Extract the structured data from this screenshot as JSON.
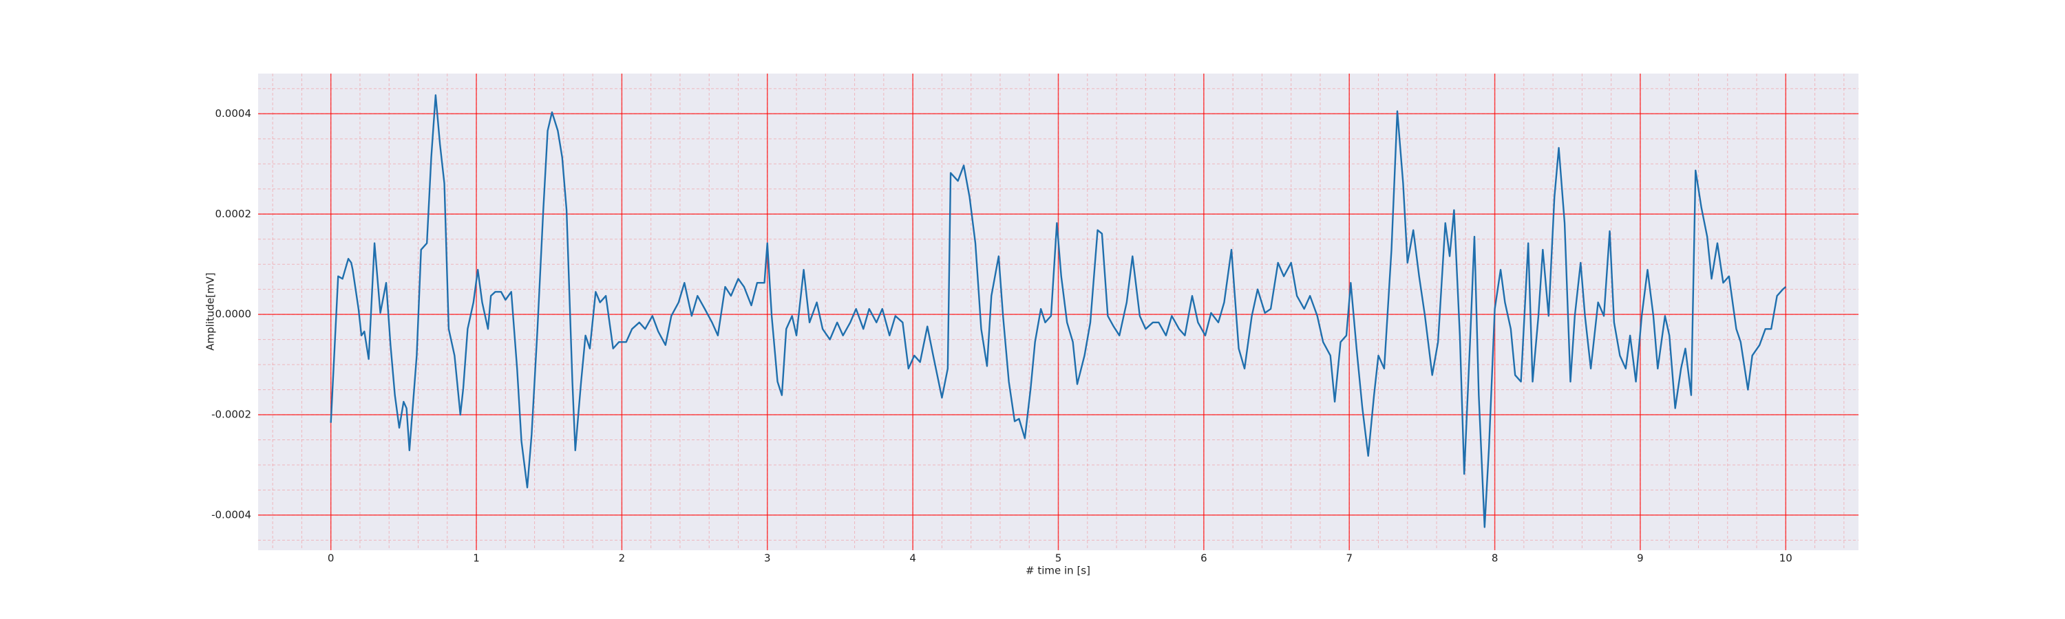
{
  "chart_data": {
    "type": "line",
    "xlabel": "# time in [s]",
    "ylabel": "Amplitude[mV]",
    "xlim": [
      -0.5,
      10.5
    ],
    "ylim": [
      -0.00047,
      0.00048
    ],
    "xticks": [
      0,
      1,
      2,
      3,
      4,
      5,
      6,
      7,
      8,
      9,
      10
    ],
    "yticks": [
      {
        "value": -0.0004,
        "label": "-0.0004"
      },
      {
        "value": -0.0002,
        "label": "-0.0002"
      },
      {
        "value": 0,
        "label": "0.0000"
      },
      {
        "value": 0.0002,
        "label": "0.0002"
      },
      {
        "value": 0.0004,
        "label": "0.0004"
      }
    ],
    "grid": true,
    "minor_grid": true,
    "grid_color": "#ff0000",
    "background": "#eaeaf2",
    "series": [
      {
        "color": "#1f6fad",
        "x": [
          0.0,
          0.05,
          0.08,
          0.12,
          0.14,
          0.15,
          0.19,
          0.21,
          0.23,
          0.26,
          0.3,
          0.34,
          0.38,
          0.41,
          0.44,
          0.47,
          0.5,
          0.52,
          0.54,
          0.59,
          0.62,
          0.66,
          0.69,
          0.72,
          0.75,
          0.78,
          0.81,
          0.85,
          0.89,
          0.91,
          0.94,
          0.98,
          1.01,
          1.04,
          1.08,
          1.1,
          1.13,
          1.17,
          1.2,
          1.24,
          1.28,
          1.31,
          1.35,
          1.38,
          1.42,
          1.46,
          1.49,
          1.52,
          1.56,
          1.59,
          1.62,
          1.66,
          1.68,
          1.72,
          1.75,
          1.78,
          1.82,
          1.85,
          1.89,
          1.94,
          1.98,
          2.03,
          2.07,
          2.12,
          2.16,
          2.21,
          2.25,
          2.3,
          2.34,
          2.39,
          2.43,
          2.48,
          2.52,
          2.57,
          2.62,
          2.66,
          2.71,
          2.75,
          2.8,
          2.84,
          2.89,
          2.93,
          2.98,
          3.0,
          3.03,
          3.07,
          3.1,
          3.13,
          3.17,
          3.2,
          3.25,
          3.29,
          3.34,
          3.38,
          3.43,
          3.48,
          3.52,
          3.57,
          3.61,
          3.66,
          3.7,
          3.75,
          3.79,
          3.84,
          3.88,
          3.93,
          3.97,
          4.01,
          4.05,
          4.1,
          4.14,
          4.2,
          4.24,
          4.26,
          4.31,
          4.35,
          4.39,
          4.43,
          4.47,
          4.51,
          4.54,
          4.59,
          4.62,
          4.66,
          4.7,
          4.73,
          4.77,
          4.81,
          4.84,
          4.88,
          4.91,
          4.95,
          4.99,
          5.02,
          5.06,
          5.1,
          5.13,
          5.18,
          5.22,
          5.27,
          5.3,
          5.34,
          5.38,
          5.42,
          5.47,
          5.51,
          5.56,
          5.6,
          5.65,
          5.69,
          5.74,
          5.78,
          5.83,
          5.87,
          5.92,
          5.96,
          6.01,
          6.05,
          6.1,
          6.14,
          6.19,
          6.24,
          6.28,
          6.33,
          6.37,
          6.42,
          6.46,
          6.51,
          6.55,
          6.6,
          6.64,
          6.69,
          6.73,
          6.78,
          6.82,
          6.87,
          6.9,
          6.94,
          6.98,
          7.01,
          7.05,
          7.09,
          7.13,
          7.17,
          7.2,
          7.24,
          7.29,
          7.33,
          7.37,
          7.4,
          7.44,
          7.48,
          7.52,
          7.57,
          7.61,
          7.66,
          7.69,
          7.72,
          7.76,
          7.79,
          7.83,
          7.86,
          7.89,
          7.93,
          7.96,
          8.0,
          8.04,
          8.07,
          8.11,
          8.14,
          8.18,
          8.23,
          8.26,
          8.3,
          8.33,
          8.37,
          8.41,
          8.44,
          8.48,
          8.52,
          8.55,
          8.59,
          8.62,
          8.66,
          8.71,
          8.75,
          8.79,
          8.82,
          8.86,
          8.9,
          8.93,
          8.97,
          9.01,
          9.05,
          9.09,
          9.12,
          9.17,
          9.2,
          9.24,
          9.28,
          9.31,
          9.35,
          9.38,
          9.42,
          9.46,
          9.49,
          9.53,
          9.57,
          9.61,
          9.66,
          9.69,
          9.74,
          9.77,
          9.82,
          9.86,
          9.9,
          9.94,
          9.98,
          10.0
        ],
        "values": [
          -0.000216,
          7.6e-05,
          7.1e-05,
          0.000111,
          0.000103,
          8.9e-05,
          1.1e-05,
          -4.2e-05,
          -3.4e-05,
          -8.9e-05,
          0.000142,
          3e-06,
          6.3e-05,
          -6.1e-05,
          -0.000161,
          -0.000226,
          -0.000174,
          -0.000187,
          -0.000271,
          -8.2e-05,
          0.000129,
          0.000142,
          0.000313,
          0.000437,
          0.000339,
          0.000261,
          -2.9e-05,
          -8.2e-05,
          -0.0002,
          -0.000147,
          -2.9e-05,
          2.4e-05,
          8.9e-05,
          2.4e-05,
          -2.9e-05,
          3.7e-05,
          4.5e-05,
          4.5e-05,
          2.9e-05,
          4.5e-05,
          -0.000108,
          -0.000253,
          -0.000345,
          -0.000239,
          -2.9e-05,
          0.000208,
          0.000366,
          0.000403,
          0.000366,
          0.000313,
          0.000208,
          -0.000134,
          -0.000271,
          -0.000134,
          -4.2e-05,
          -6.8e-05,
          4.5e-05,
          2.4e-05,
          3.7e-05,
          -6.8e-05,
          -5.5e-05,
          -5.5e-05,
          -2.9e-05,
          -1.6e-05,
          -2.9e-05,
          -3e-06,
          -3.4e-05,
          -6.1e-05,
          -3e-06,
          2.4e-05,
          6.3e-05,
          -3e-06,
          3.7e-05,
          1.1e-05,
          -1.6e-05,
          -4.2e-05,
          5.5e-05,
          3.7e-05,
          7.1e-05,
          5.5e-05,
          1.8e-05,
          6.3e-05,
          6.3e-05,
          0.000142,
          -3e-06,
          -0.000134,
          -0.000161,
          -2.9e-05,
          -3e-06,
          -4.2e-05,
          8.9e-05,
          -1.6e-05,
          2.4e-05,
          -2.9e-05,
          -5e-05,
          -1.6e-05,
          -4.2e-05,
          -1.6e-05,
          1.1e-05,
          -2.9e-05,
          1.1e-05,
          -1.6e-05,
          1.1e-05,
          -4.2e-05,
          -3e-06,
          -1.6e-05,
          -0.000108,
          -8.2e-05,
          -9.5e-05,
          -2.4e-05,
          -8.2e-05,
          -0.000166,
          -0.000108,
          0.000282,
          0.000266,
          0.000297,
          0.000234,
          0.000142,
          -2.9e-05,
          -0.000103,
          3.7e-05,
          0.000116,
          -3e-06,
          -0.000134,
          -0.000213,
          -0.000208,
          -0.000247,
          -0.000147,
          -5.5e-05,
          1.1e-05,
          -1.6e-05,
          -3e-06,
          0.000182,
          7.6e-05,
          -1.6e-05,
          -5.5e-05,
          -0.000139,
          -8.2e-05,
          -1.6e-05,
          0.000168,
          0.000161,
          -3e-06,
          -2.4e-05,
          -4.2e-05,
          2.4e-05,
          0.000116,
          -3e-06,
          -2.9e-05,
          -1.6e-05,
          -1.6e-05,
          -4.2e-05,
          -3e-06,
          -2.9e-05,
          -4.2e-05,
          3.7e-05,
          -1.6e-05,
          -4.2e-05,
          3e-06,
          -1.6e-05,
          2.4e-05,
          0.000129,
          -6.8e-05,
          -0.000108,
          -3e-06,
          5e-05,
          3e-06,
          1.1e-05,
          0.000103,
          7.6e-05,
          0.000103,
          3.7e-05,
          1.1e-05,
          3.7e-05,
          -3e-06,
          -5.5e-05,
          -8.2e-05,
          -0.000174,
          -5.5e-05,
          -4.2e-05,
          6.3e-05,
          -6.8e-05,
          -0.000187,
          -0.000282,
          -0.000161,
          -8.2e-05,
          -0.000108,
          0.000129,
          0.000405,
          0.000261,
          0.000103,
          0.000168,
          7.6e-05,
          -3e-06,
          -0.000121,
          -5.5e-05,
          0.000182,
          0.000116,
          0.000208,
          -4.2e-05,
          -0.000318,
          -5.5e-05,
          0.000155,
          -0.000161,
          -0.000424,
          -0.000266,
          1.1e-05,
          8.9e-05,
          2.4e-05,
          -2.9e-05,
          -0.000121,
          -0.000134,
          0.000142,
          -0.000134,
          -3e-06,
          0.000129,
          -3e-06,
          0.000234,
          0.000332,
          0.000182,
          -0.000134,
          -3e-06,
          0.000103,
          -3e-06,
          -0.000108,
          2.4e-05,
          -3e-06,
          0.000166,
          -1.6e-05,
          -8.2e-05,
          -0.000108,
          -4.2e-05,
          -0.000134,
          -3e-06,
          8.9e-05,
          -3e-06,
          -0.000108,
          -3e-06,
          -4.2e-05,
          -0.000187,
          -0.000108,
          -6.8e-05,
          -0.000161,
          0.000287,
          0.000213,
          0.000155,
          7.1e-05,
          0.000142,
          6.3e-05,
          7.6e-05,
          -2.9e-05,
          -5.5e-05,
          -0.00015,
          -8.2e-05,
          -6.1e-05,
          -2.9e-05,
          -2.9e-05,
          3.7e-05,
          5e-05,
          5.5e-05
        ]
      }
    ]
  }
}
